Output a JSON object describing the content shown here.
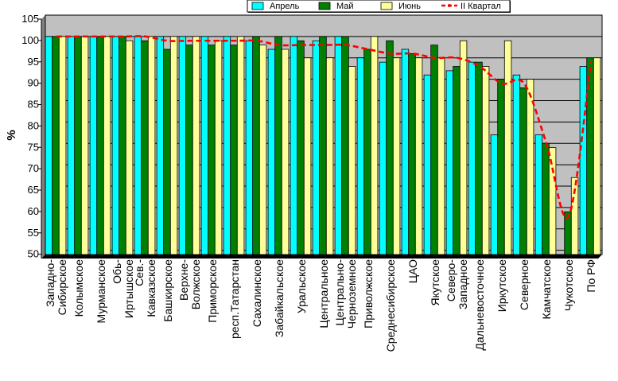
{
  "chart_data": {
    "type": "bar",
    "ylabel": "%",
    "ylim": [
      49,
      105
    ],
    "yticks": [
      50,
      55,
      60,
      65,
      70,
      75,
      80,
      85,
      90,
      95,
      100,
      105
    ],
    "grid": true,
    "legend_position": "top-center",
    "categories": [
      "Западно-Сибирское",
      "Колымское",
      "Мурманское",
      "Обь-Иртышское",
      "Сев.-Кавказское",
      "Башкирское",
      "Верхне-Волжское",
      "Приморское",
      "респ.Татарстан",
      "Сахалинское",
      "Забайкальское",
      "Уральское",
      "Центральное",
      "Центрально-Черноземное",
      "Приволжское",
      "Среднесибирское",
      "ЦАО",
      "Якутское",
      "Северо-Западное",
      "Дальневосточное",
      "Иркутское",
      "Северное",
      "Камчатское",
      "Чукотское",
      "По РФ"
    ],
    "series": [
      {
        "name": "Апрель",
        "color": "#00ffff",
        "values": [
          100,
          100,
          100,
          100,
          100,
          100,
          100,
          100,
          100,
          99,
          97,
          100,
          99,
          100,
          95,
          94,
          97,
          91,
          92,
          94,
          77,
          91,
          77,
          49,
          93
        ]
      },
      {
        "name": "Май",
        "color": "#008000",
        "values": [
          100,
          100,
          100,
          100,
          99,
          97,
          98,
          98,
          98,
          100,
          100,
          99,
          100,
          100,
          97,
          99,
          96,
          98,
          93,
          94,
          90,
          88,
          75,
          59,
          95
        ]
      },
      {
        "name": "Июнь",
        "color": "#ffff99",
        "values": [
          100,
          100,
          100,
          99,
          100,
          100,
          100,
          99,
          100,
          98,
          97,
          95,
          95,
          93,
          100,
          95,
          95,
          95,
          99,
          93,
          99,
          90,
          74,
          67,
          95
        ]
      },
      {
        "name": "II Квартал",
        "color": "#ff0000",
        "line": true,
        "values": [
          100,
          100,
          100,
          100,
          100,
          99,
          99,
          99,
          99,
          99,
          98,
          98,
          98,
          98,
          97,
          96,
          96,
          95,
          95,
          93,
          89,
          89,
          75,
          58,
          94
        ]
      }
    ]
  }
}
